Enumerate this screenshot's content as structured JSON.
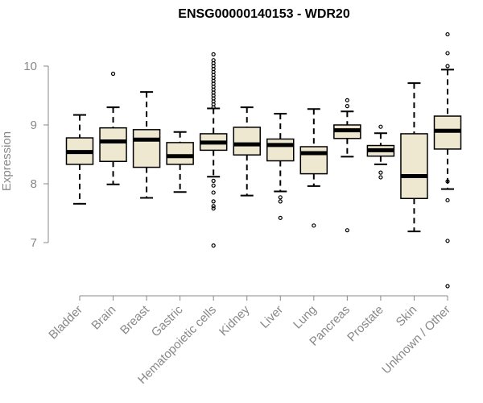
{
  "chart_data": {
    "type": "box",
    "title": "ENSG00000140153 - WDR20",
    "ylabel": "Expression",
    "xlabel": "",
    "ylim": [
      6.0,
      10.8
    ],
    "yticks": [
      7,
      8,
      9,
      10
    ],
    "colors": {
      "box_fill": "#efe8d0",
      "box_stroke": "#000000",
      "axis": "#888888"
    },
    "categories": [
      "Bladder",
      "Brain",
      "Breast",
      "Gastric",
      "Hematopoietic cells",
      "Kidney",
      "Liver",
      "Lung",
      "Pancreas",
      "Prostate",
      "Skin",
      "Unknown / Other"
    ],
    "boxes": [
      {
        "min": 7.66,
        "q1": 8.33,
        "median": 8.54,
        "q3": 8.78,
        "max": 9.17,
        "outliers": []
      },
      {
        "min": 7.99,
        "q1": 8.38,
        "median": 8.72,
        "q3": 8.95,
        "max": 9.3,
        "outliers": [
          9.87
        ]
      },
      {
        "min": 7.76,
        "q1": 8.28,
        "median": 8.75,
        "q3": 8.92,
        "max": 9.56,
        "outliers": []
      },
      {
        "min": 7.86,
        "q1": 8.33,
        "median": 8.47,
        "q3": 8.7,
        "max": 8.88,
        "outliers": []
      },
      {
        "min": 8.12,
        "q1": 8.57,
        "median": 8.7,
        "q3": 8.85,
        "max": 9.28,
        "outliers": [
          10.2,
          10.1,
          10.05,
          10.0,
          9.95,
          9.9,
          9.85,
          9.8,
          9.75,
          9.7,
          9.65,
          9.6,
          9.55,
          9.5,
          9.45,
          9.4,
          9.35,
          9.3,
          8.05,
          7.97,
          7.85,
          7.7,
          7.62,
          7.58,
          6.95
        ]
      },
      {
        "min": 7.8,
        "q1": 8.49,
        "median": 8.67,
        "q3": 8.96,
        "max": 9.3,
        "outliers": []
      },
      {
        "min": 7.87,
        "q1": 8.39,
        "median": 8.66,
        "q3": 8.76,
        "max": 9.19,
        "outliers": [
          7.77,
          7.7,
          7.42
        ]
      },
      {
        "min": 7.96,
        "q1": 8.17,
        "median": 8.52,
        "q3": 8.63,
        "max": 9.27,
        "outliers": [
          7.29
        ]
      },
      {
        "min": 8.46,
        "q1": 8.77,
        "median": 8.91,
        "q3": 9.0,
        "max": 9.23,
        "outliers": [
          9.42,
          9.32,
          7.21
        ]
      },
      {
        "min": 8.33,
        "q1": 8.47,
        "median": 8.57,
        "q3": 8.65,
        "max": 8.86,
        "outliers": [
          8.97,
          8.19,
          8.11
        ]
      },
      {
        "min": 7.19,
        "q1": 7.75,
        "median": 8.13,
        "q3": 8.85,
        "max": 9.71,
        "outliers": []
      },
      {
        "min": 7.91,
        "q1": 8.59,
        "median": 8.9,
        "q3": 9.15,
        "max": 9.94,
        "outliers": [
          10.54,
          10.22,
          10.0,
          8.04,
          7.72,
          7.03,
          6.26
        ]
      }
    ]
  }
}
